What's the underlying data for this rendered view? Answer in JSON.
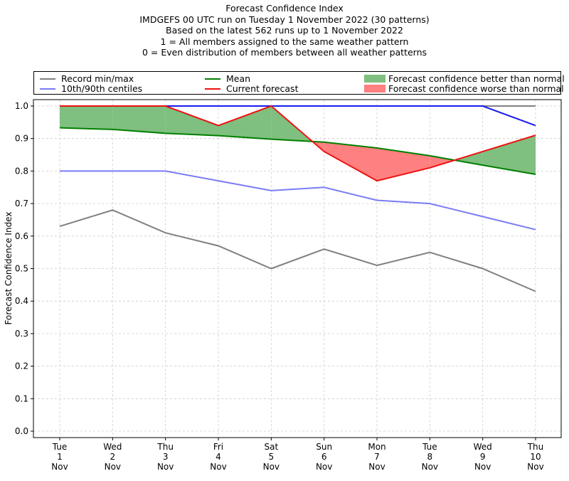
{
  "title_lines": [
    "Forecast Confidence Index",
    "IMDGEFS 00 UTC run on Tuesday 1 November 2022 (30 patterns)",
    "Based on the latest 562 runs up to 1 November 2022",
    "1 = All members assigned to the same weather pattern",
    "0 = Even distribution of members between all weather patterns"
  ],
  "legend": {
    "record": "Record min/max",
    "centiles": "10th/90th centiles",
    "mean": "Mean",
    "current": "Current forecast",
    "better": "Forecast confidence better than normal",
    "worse": "Forecast confidence worse than normal"
  },
  "colors": {
    "record": "#808080",
    "centiles": "#7b7bf5",
    "centile_upper": "#1a1aee",
    "mean": "#008000",
    "current": "#ee1111",
    "better": "#7fbf7f",
    "worse": "#ff8080"
  },
  "chart_data": {
    "type": "line",
    "ylabel": "Forecast Confidence Index",
    "ylim": [
      0.0,
      1.0
    ],
    "yticks": [
      "0.0",
      "0.1",
      "0.2",
      "0.3",
      "0.4",
      "0.5",
      "0.6",
      "0.7",
      "0.8",
      "0.9",
      "1.0"
    ],
    "grid": true,
    "legend_position": "top",
    "categories": [
      [
        "Tue",
        "1",
        "Nov"
      ],
      [
        "Wed",
        "2",
        "Nov"
      ],
      [
        "Thu",
        "3",
        "Nov"
      ],
      [
        "Fri",
        "4",
        "Nov"
      ],
      [
        "Sat",
        "5",
        "Nov"
      ],
      [
        "Sun",
        "6",
        "Nov"
      ],
      [
        "Mon",
        "7",
        "Nov"
      ],
      [
        "Tue",
        "8",
        "Nov"
      ],
      [
        "Wed",
        "9",
        "Nov"
      ],
      [
        "Thu",
        "10",
        "Nov"
      ]
    ],
    "series": {
      "record_max": [
        1.0,
        1.0,
        1.0,
        1.0,
        1.0,
        1.0,
        1.0,
        1.0,
        1.0,
        1.0
      ],
      "record_min": [
        0.63,
        0.68,
        0.61,
        0.57,
        0.5,
        0.56,
        0.51,
        0.55,
        0.5,
        0.43
      ],
      "centile_90": [
        1.0,
        1.0,
        1.0,
        1.0,
        1.0,
        1.0,
        1.0,
        1.0,
        1.0,
        0.94
      ],
      "centile_10": [
        0.8,
        0.8,
        0.8,
        0.77,
        0.74,
        0.75,
        0.71,
        0.7,
        0.66,
        0.62
      ],
      "mean": [
        0.933,
        0.928,
        0.916,
        0.909,
        0.898,
        0.889,
        0.871,
        0.847,
        0.818,
        0.79
      ],
      "current": [
        1.0,
        1.0,
        1.0,
        0.94,
        1.0,
        0.86,
        0.77,
        0.81,
        0.86,
        0.91
      ]
    }
  }
}
